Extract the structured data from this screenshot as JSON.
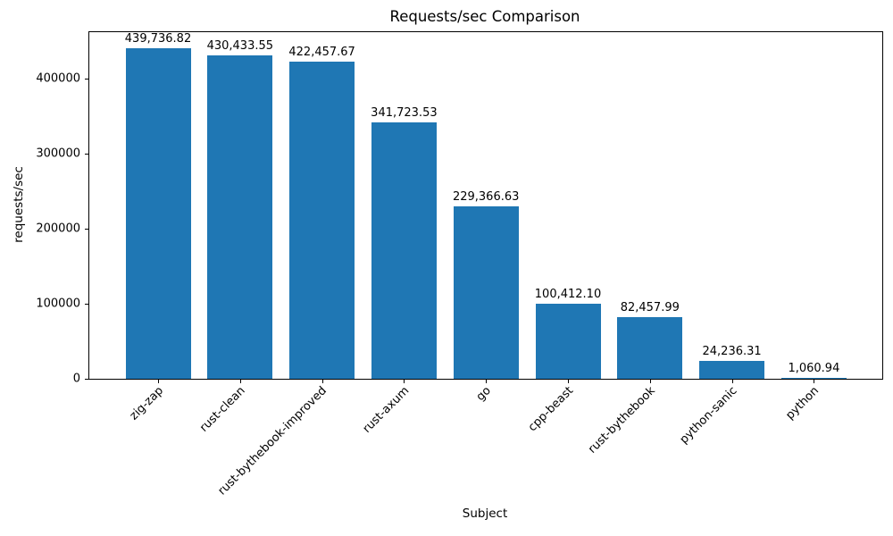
{
  "chart_data": {
    "type": "bar",
    "title": "Requests/sec Comparison",
    "xlabel": "Subject",
    "ylabel": "requests/sec",
    "categories": [
      "zig-zap",
      "rust-clean",
      "rust-bythebook-improved",
      "rust-axum",
      "go",
      "cpp-beast",
      "rust-bythebook",
      "python-sanic",
      "python"
    ],
    "values": [
      439736.82,
      430433.55,
      422457.67,
      341723.53,
      229366.63,
      100412.1,
      82457.99,
      24236.31,
      1060.94
    ],
    "value_labels": [
      "439,736.82",
      "430,433.55",
      "422,457.67",
      "341,723.53",
      "229,366.63",
      "100,412.10",
      "82,457.99",
      "24,236.31",
      "1,060.94"
    ],
    "bar_color": "#1f77b4",
    "ylim": [
      0,
      461724
    ],
    "yticks": [
      0,
      100000,
      200000,
      300000,
      400000
    ],
    "ytick_labels": [
      "0",
      "100000",
      "200000",
      "300000",
      "400000"
    ],
    "x_tick_rotation_deg": 45,
    "grid": false,
    "legend": null,
    "background_color": "#ffffff",
    "text_color": "#000000"
  }
}
